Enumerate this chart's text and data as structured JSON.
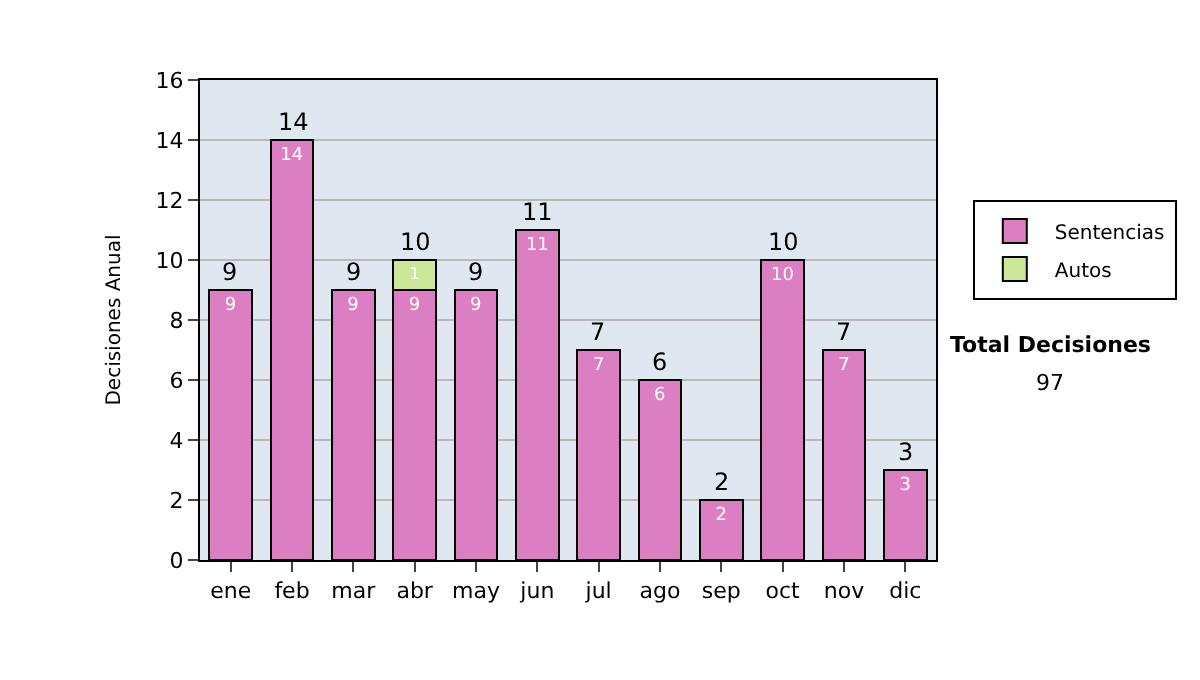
{
  "chart_data": {
    "type": "bar",
    "stacked": true,
    "ylabel": "Decisiones Anual",
    "categories": [
      "ene",
      "feb",
      "mar",
      "abr",
      "may",
      "jun",
      "jul",
      "ago",
      "sep",
      "oct",
      "nov",
      "dic"
    ],
    "series": [
      {
        "name": "Sentencias",
        "color": "#dc7fc2",
        "values": [
          9,
          14,
          9,
          9,
          9,
          11,
          7,
          6,
          2,
          10,
          7,
          3
        ]
      },
      {
        "name": "Autos",
        "color": "#cce69a",
        "values": [
          null,
          null,
          null,
          1,
          null,
          null,
          null,
          null,
          null,
          null,
          null,
          null
        ]
      }
    ],
    "totals": [
      "9",
      "14",
      "9",
      "10",
      "9",
      "11",
      "7",
      "6",
      "2",
      "10",
      "7",
      "3"
    ],
    "data_labels": true,
    "ylim": [
      0,
      16
    ],
    "yticks": [
      0,
      2,
      4,
      6,
      8,
      10,
      12,
      14,
      16
    ],
    "grid": "y",
    "legend": "right",
    "annotations": [
      "Total Decisiones",
      "97"
    ]
  }
}
